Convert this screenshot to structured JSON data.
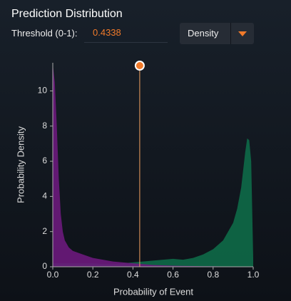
{
  "title": "Prediction Distribution",
  "threshold_label": "Threshold (0-1):",
  "dropdown": "Density",
  "chart_data": {
    "type": "area",
    "threshold": 0.4338,
    "x_label": "Probability of Event",
    "y_label": "Probability Density",
    "x": [
      0,
      0.01,
      0.02,
      0.03,
      0.04,
      0.05,
      0.06,
      0.08,
      0.1,
      0.15,
      0.2,
      0.25,
      0.3,
      0.35,
      0.4,
      0.45,
      0.5,
      0.55,
      0.6,
      0.65,
      0.7,
      0.75,
      0.8,
      0.85,
      0.9,
      0.92,
      0.94,
      0.95,
      0.96,
      0.97,
      0.98,
      0.99,
      1.0
    ],
    "series": [
      {
        "color": "#0e6a48",
        "values": [
          0.2,
          0.2,
          0.2,
          0.2,
          0.2,
          0.2,
          0.2,
          0.2,
          0.2,
          0.2,
          0.2,
          0.15,
          0.15,
          0.2,
          0.25,
          0.3,
          0.35,
          0.4,
          0.45,
          0.4,
          0.5,
          0.7,
          1.0,
          1.5,
          2.5,
          3.3,
          4.5,
          5.5,
          6.5,
          7.3,
          7.2,
          6,
          0.5
        ]
      },
      {
        "color": "#6c1a7c",
        "values": [
          11.5,
          10.5,
          8,
          5,
          3,
          2,
          1.5,
          1.1,
          0.9,
          0.7,
          0.5,
          0.4,
          0.3,
          0.25,
          0.2,
          0.15,
          0.1,
          0.08,
          0.06,
          0.05,
          0.04,
          0.03,
          0.03,
          0.02,
          0.02,
          0.02,
          0.02,
          0.02,
          0.02,
          0.02,
          0.02,
          0.02,
          0
        ]
      }
    ],
    "xlim": [
      0,
      1
    ],
    "xticks": [
      {
        "value": 0,
        "label": "0.0"
      },
      0.2,
      0.4,
      0.6,
      0.8,
      {
        "value": 1,
        "label": "1.0"
      }
    ],
    "ylim": [
      0,
      11.6
    ],
    "yticks": [
      0,
      2,
      4,
      6,
      8,
      10
    ]
  }
}
